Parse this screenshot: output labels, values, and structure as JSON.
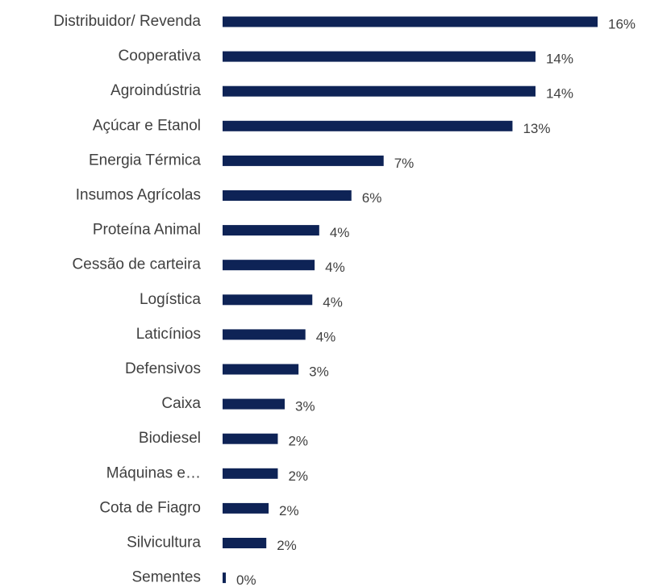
{
  "chart_data": {
    "type": "barh",
    "categories": [
      "Distribuidor/ Revenda",
      "Cooperativa",
      "Agroindústria",
      "Açúcar e Etanol",
      "Energia Térmica",
      "Insumos Agrícolas",
      "Proteína Animal",
      "Cessão de carteira",
      "Logística",
      "Laticínios",
      "Defensivos",
      "Caixa",
      "Biodiesel",
      "Máquinas e…",
      "Cota de Fiagro",
      "Silvicultura",
      "Sementes"
    ],
    "values": [
      16.3,
      13.6,
      13.6,
      12.6,
      7.0,
      5.6,
      4.2,
      4.0,
      3.9,
      3.6,
      3.3,
      2.7,
      2.4,
      2.4,
      2.0,
      1.9,
      0.14
    ],
    "value_labels": [
      "16%",
      "14%",
      "14%",
      "13%",
      "7%",
      "6%",
      "4%",
      "4%",
      "4%",
      "4%",
      "3%",
      "3%",
      "2%",
      "2%",
      "2%",
      "2%",
      "0%"
    ],
    "color": "#0e2356"
  }
}
